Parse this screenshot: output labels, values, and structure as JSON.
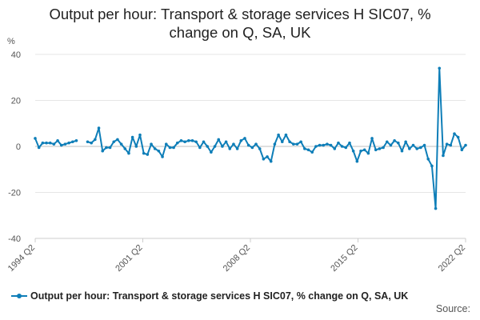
{
  "title_line1": "Output per hour: Transport & storage services H SIC07, %",
  "title_line2": "change on Q, SA, UK",
  "source_label": "Source:",
  "colors": {
    "series": "#0e7eb8",
    "grid": "#e6e6e6",
    "axis_text": "#555555",
    "zero_line": "#bfbfbf"
  },
  "chart_data": {
    "type": "line",
    "ylabel": "%",
    "ylim": [
      -40,
      40
    ],
    "yticks": [
      40,
      20,
      0,
      -20,
      -40
    ],
    "x_start": "1994 Q2",
    "x_end": "2022 Q2",
    "xticks": [
      "1994 Q2",
      "2001 Q2",
      "2008 Q2",
      "2015 Q2",
      "2022 Q2"
    ],
    "grid": "horizontal",
    "legend_position": "bottom-left",
    "series": [
      {
        "name": "Output per hour: Transport & storage services H SIC07, % change on Q, SA, UK",
        "values": [
          3.5,
          -0.5,
          1.5,
          1.5,
          1.5,
          1.0,
          2.5,
          0.5,
          1.0,
          1.5,
          2.0,
          2.5,
          null,
          null,
          2.0,
          1.5,
          3.0,
          8.0,
          -2.0,
          -0.5,
          -0.5,
          2.0,
          3.0,
          1.0,
          -1.0,
          -3.0,
          4.0,
          0.0,
          5.0,
          -3.0,
          -3.5,
          1.0,
          -1.0,
          -2.0,
          -4.5,
          1.0,
          -0.5,
          -0.5,
          1.5,
          2.5,
          2.0,
          2.5,
          2.5,
          2.0,
          -0.5,
          2.0,
          0.0,
          -2.5,
          0.0,
          3.0,
          0.0,
          2.0,
          -1.0,
          1.0,
          -1.0,
          2.5,
          3.5,
          0.5,
          -0.5,
          1.0,
          -1.0,
          -5.5,
          -4.5,
          -6.5,
          1.0,
          5.0,
          2.0,
          5.0,
          2.0,
          1.0,
          1.0,
          2.0,
          -1.0,
          -1.5,
          -2.5,
          0.0,
          0.5,
          0.5,
          1.0,
          0.5,
          -1.0,
          1.5,
          0.0,
          -0.5,
          1.5,
          -2.0,
          -6.5,
          -2.0,
          -1.5,
          -3.0,
          3.5,
          -1.5,
          -1.0,
          -0.5,
          2.0,
          0.5,
          2.5,
          1.5,
          -2.0,
          2.0,
          -1.0,
          0.5,
          -1.0,
          -0.5,
          0.5,
          -5.5,
          -8.5,
          -27.0,
          34.0,
          -4.0,
          1.0,
          0.5,
          5.5,
          4.0,
          -1.5,
          0.5
        ]
      }
    ]
  }
}
